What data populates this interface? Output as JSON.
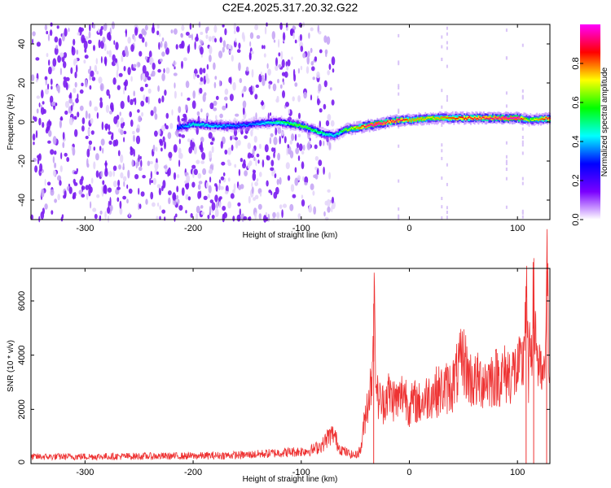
{
  "figure": {
    "title": "C2E4.2025.317.20.32.G22"
  },
  "chart_data": [
    {
      "type": "heatmap",
      "title": "C2E4.2025.317.20.32.G22",
      "xlabel": "Height of straight line (km)",
      "ylabel": "Frequency (Hz)",
      "xlim": [
        -350,
        130
      ],
      "ylim": [
        -50,
        50
      ],
      "xticks": [
        -300,
        -200,
        -100,
        0,
        100
      ],
      "yticks": [
        -40,
        -20,
        0,
        20,
        40
      ],
      "colorbar": {
        "label": "Normalized spectral amplitude",
        "range": [
          0,
          1
        ],
        "ticks": [
          "0.0",
          "0.2",
          "0.4",
          "0.6",
          "0.8"
        ],
        "colormap": [
          "#ffffff",
          "#7a00ff",
          "#0000ff",
          "#00ffff",
          "#00ff00",
          "#ffff00",
          "#ff0000",
          "#ff00ff"
        ]
      },
      "ridge": {
        "x": [
          -215,
          -200,
          -180,
          -160,
          -145,
          -120,
          -100,
          -90,
          -80,
          -70,
          -60,
          -50,
          -40,
          -30,
          -20,
          -10,
          0,
          20,
          40,
          60,
          80,
          100,
          110,
          130
        ],
        "freq": [
          -3,
          -1,
          -2,
          -2,
          -1,
          0,
          -2,
          -4,
          -6,
          -7,
          -4,
          -3,
          -2,
          -1,
          0,
          1,
          1,
          2,
          2,
          2,
          2,
          2,
          1,
          2
        ],
        "amplitude": [
          0.3,
          0.45,
          0.4,
          0.35,
          0.35,
          0.5,
          0.6,
          0.55,
          0.5,
          0.4,
          0.6,
          0.7,
          0.9,
          0.95,
          0.85,
          0.9,
          0.75,
          0.7,
          0.8,
          0.85,
          0.9,
          0.95,
          0.6,
          0.9
        ]
      },
      "noise_region": [
        -350,
        -70
      ]
    },
    {
      "type": "line",
      "xlabel": "Height of straight line (km)",
      "ylabel": "SNR (10 * v/v)",
      "xlim": [
        -350,
        130
      ],
      "ylim": [
        0,
        7200
      ],
      "xticks": [
        -300,
        -200,
        -100,
        0,
        100
      ],
      "yticks": [
        0,
        2000,
        4000,
        6000
      ],
      "series": [
        {
          "color": "#ee3333",
          "x": [
            -350,
            -300,
            -250,
            -200,
            -150,
            -120,
            -100,
            -90,
            -80,
            -75,
            -70,
            -65,
            -60,
            -55,
            -50,
            -45,
            -40,
            -35,
            -33,
            -30,
            -25,
            -20,
            -15,
            -10,
            -5,
            0,
            5,
            10,
            20,
            30,
            40,
            45,
            50,
            55,
            60,
            70,
            80,
            90,
            100,
            105,
            108,
            110,
            115,
            120,
            125,
            127,
            130
          ],
          "y": [
            250,
            260,
            270,
            280,
            320,
            400,
            450,
            500,
            700,
            1000,
            1100,
            600,
            450,
            350,
            300,
            500,
            2000,
            3000,
            5900,
            2500,
            2200,
            2600,
            2400,
            2300,
            2700,
            2100,
            2300,
            2200,
            2600,
            2700,
            2900,
            3400,
            3900,
            3200,
            3000,
            3100,
            3200,
            3300,
            3400,
            3600,
            6400,
            3200,
            5800,
            3300,
            3000,
            7100,
            3400
          ]
        }
      ]
    }
  ]
}
